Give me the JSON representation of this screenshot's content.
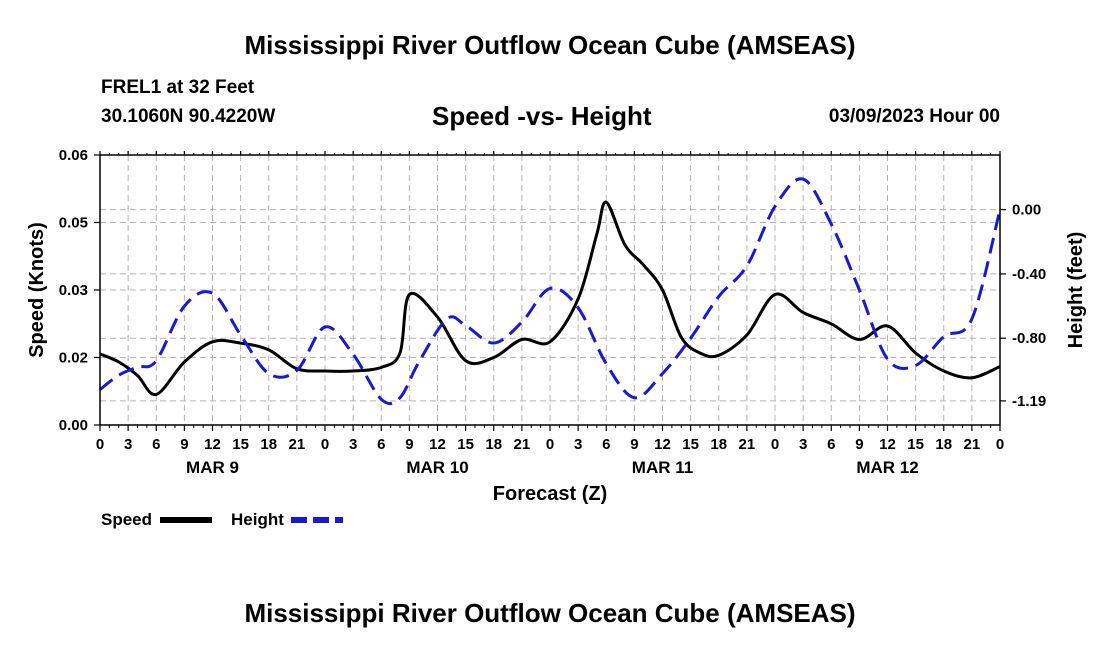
{
  "header": {
    "title": "Mississippi River Outflow Ocean Cube (AMSEAS)",
    "station": "FREL1 at 32 Feet",
    "coords": "30.1060N  90.4220W",
    "subtitle": "Speed -vs- Height",
    "datetime": "03/09/2023 Hour 00",
    "footer_title": "Mississippi River Outflow Ocean Cube (AMSEAS)"
  },
  "colors": {
    "speed": "#000000",
    "height": "#1a1acc",
    "grid": "#b4b4b4"
  },
  "chart_data": {
    "type": "line",
    "title": "Speed -vs- Height",
    "xlabel": "Forecast (Z)",
    "ylabel_left": "Speed (Knots)",
    "ylabel_right": "Height (feet)",
    "grid": true,
    "x_range_hours": [
      0,
      96
    ],
    "x_tick_labels": [
      "0",
      "3",
      "6",
      "9",
      "12",
      "15",
      "18",
      "21",
      "0",
      "3",
      "6",
      "9",
      "12",
      "15",
      "18",
      "21",
      "0",
      "3",
      "6",
      "9",
      "12",
      "15",
      "18",
      "21",
      "0",
      "3",
      "6",
      "9",
      "12",
      "15",
      "18",
      "21",
      "0"
    ],
    "day_labels": [
      {
        "label": "MAR 9",
        "hour": 12
      },
      {
        "label": "MAR 10",
        "hour": 36
      },
      {
        "label": "MAR 11",
        "hour": 60
      },
      {
        "label": "MAR 12",
        "hour": 84
      }
    ],
    "y_left": {
      "range": [
        0,
        0.06
      ],
      "ticks": [
        0,
        0.015,
        0.03,
        0.045,
        0.06
      ],
      "tick_labels": [
        "0.00",
        "0.02",
        "0.03",
        "0.05",
        "0.06"
      ]
    },
    "y_right": {
      "range": [
        -1.34,
        0.34
      ],
      "ticks": [
        0.0,
        -0.4,
        -0.8,
        -1.19
      ],
      "tick_labels": [
        "0.00",
        "-0.40",
        "-0.80",
        "-1.19"
      ]
    },
    "legend": {
      "position": "bottom-left",
      "entries": [
        "Speed",
        "Height"
      ]
    },
    "series": [
      {
        "name": "Speed",
        "axis": "left",
        "style": "solid",
        "x": [
          0,
          2,
          4,
          6,
          9,
          12,
          15,
          18,
          21,
          24,
          27,
          30,
          32,
          33,
          36,
          39,
          42,
          45,
          48,
          51,
          53,
          54,
          56,
          58,
          60,
          62,
          64,
          66,
          69,
          72,
          75,
          78,
          81,
          84,
          87,
          90,
          93,
          96
        ],
        "y": [
          0.0158,
          0.014,
          0.011,
          0.0068,
          0.014,
          0.0185,
          0.0182,
          0.0167,
          0.0125,
          0.012,
          0.012,
          0.0128,
          0.016,
          0.029,
          0.024,
          0.0143,
          0.015,
          0.019,
          0.0185,
          0.028,
          0.0425,
          0.0495,
          0.04,
          0.0355,
          0.03,
          0.0195,
          0.016,
          0.0155,
          0.02,
          0.029,
          0.025,
          0.0225,
          0.019,
          0.022,
          0.016,
          0.012,
          0.0105,
          0.013
        ]
      },
      {
        "name": "Height",
        "axis": "right",
        "style": "dashed",
        "x": [
          0,
          2,
          4,
          6,
          9,
          12,
          15,
          18,
          21,
          24,
          27,
          30,
          32,
          34,
          37,
          39,
          42,
          45,
          48,
          51,
          54,
          57,
          60,
          63,
          66,
          69,
          72,
          75,
          78,
          81,
          84,
          87,
          90,
          93,
          96
        ],
        "y": [
          -1.12,
          -1.03,
          -0.98,
          -0.94,
          -0.6,
          -0.52,
          -0.78,
          -1.02,
          -1.0,
          -0.73,
          -0.9,
          -1.18,
          -1.17,
          -0.95,
          -0.68,
          -0.72,
          -0.83,
          -0.7,
          -0.49,
          -0.61,
          -0.96,
          -1.17,
          -1.02,
          -0.8,
          -0.54,
          -0.35,
          0.02,
          0.19,
          -0.09,
          -0.5,
          -0.93,
          -0.97,
          -0.79,
          -0.68,
          0.0
        ]
      }
    ]
  }
}
